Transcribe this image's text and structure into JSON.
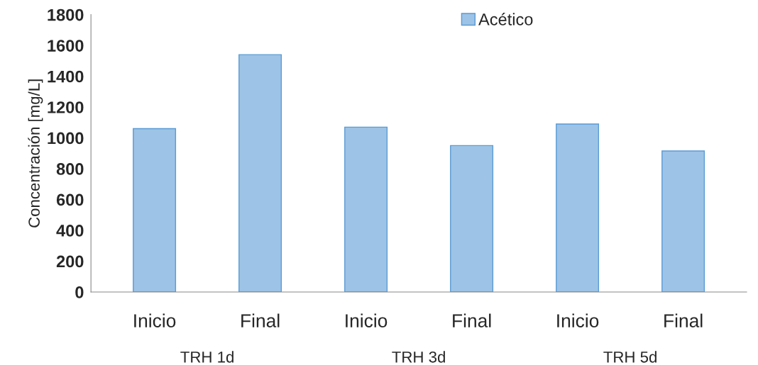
{
  "chart_data": {
    "type": "bar",
    "ylabel": "Concentración [mg/L]",
    "categories": [
      "Inicio",
      "Final",
      "Inicio",
      "Final",
      "Inicio",
      "Final"
    ],
    "series": [
      {
        "name": "Acético",
        "color": "#9dc3e6",
        "values": [
          1060,
          1540,
          1070,
          950,
          1090,
          915
        ]
      }
    ],
    "ylim": [
      0,
      1800
    ],
    "yticks": [
      0,
      200,
      400,
      600,
      800,
      1000,
      1200,
      1400,
      1600,
      1800
    ],
    "grid": false,
    "legend": "top",
    "annotations": [
      "TRH 1d",
      "TRH 3d",
      "TRH 5d"
    ]
  }
}
